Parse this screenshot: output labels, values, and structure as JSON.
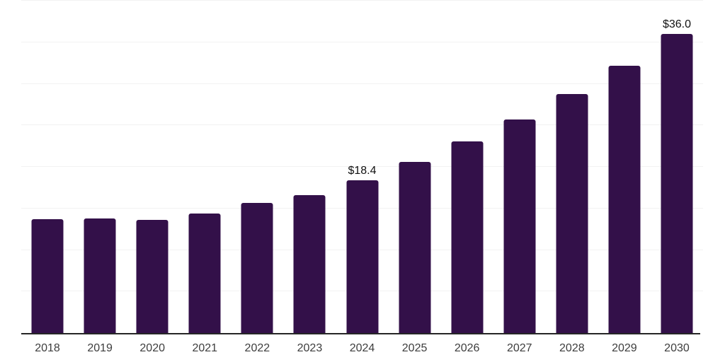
{
  "chart_data": {
    "type": "bar",
    "title": "",
    "xlabel": "",
    "ylabel": "",
    "categories": [
      "2018",
      "2019",
      "2020",
      "2021",
      "2022",
      "2023",
      "2024",
      "2025",
      "2026",
      "2027",
      "2028",
      "2029",
      "2030"
    ],
    "values": [
      13.7,
      13.8,
      13.6,
      14.4,
      15.7,
      16.6,
      18.4,
      20.6,
      23.1,
      25.7,
      28.8,
      32.2,
      36.0
    ],
    "data_labels": [
      "",
      "",
      "",
      "",
      "",
      "",
      "$18.4",
      "",
      "",
      "",
      "",
      "",
      "$36.0"
    ],
    "ylim": [
      0,
      40
    ],
    "ytick_step": 5,
    "y_axis_labels_visible": false,
    "grid": "horizontal",
    "legend": "none",
    "colors": {
      "bar": "#331049",
      "grid": "#f2f2f2",
      "axis": "#262626",
      "tick_label": "#3d3d3d",
      "data_label": "#111111",
      "background": "#ffffff"
    }
  }
}
